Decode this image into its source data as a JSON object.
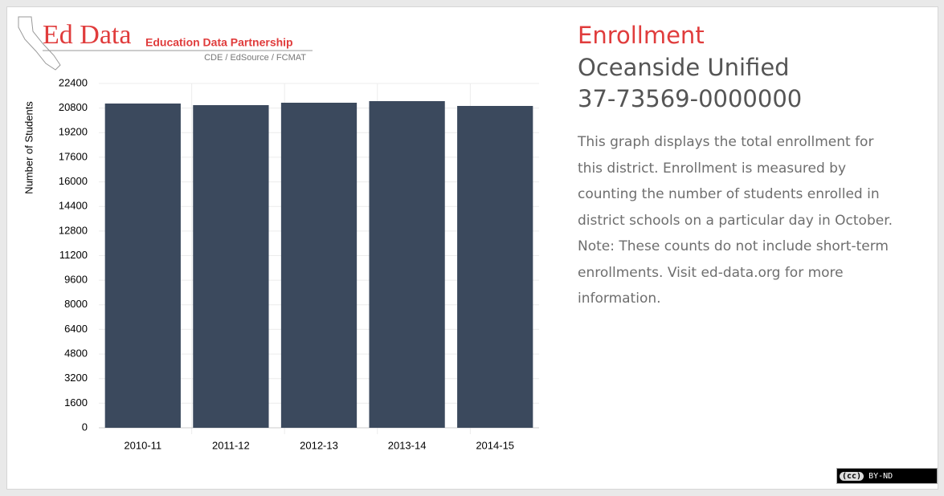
{
  "logo": {
    "name": "Ed Data",
    "tagline": "Education Data Partnership",
    "partners": "CDE / EdSource / FCMAT"
  },
  "info": {
    "heading": "Enrollment",
    "district": "Oceanside Unified",
    "code": "37-73569-0000000",
    "description": [
      "This graph displays the total enrollment for",
      "this district. Enrollment is measured by",
      "counting the number of students enrolled in",
      "district schools on a particular day in October.",
      "Note: These counts do not include short-term",
      "enrollments. Visit ed-data.org for more",
      "information."
    ]
  },
  "license": {
    "cc": "(cc)",
    "terms": "BY-ND"
  },
  "chart_data": {
    "type": "bar",
    "y_label": "Number of Students",
    "categories": [
      "2010-11",
      "2011-12",
      "2012-13",
      "2013-14",
      "2014-15"
    ],
    "values": [
      21095,
      20990,
      21147,
      21251,
      20938
    ],
    "color": "#3b495d",
    "ylim": [
      0,
      22400
    ],
    "yticks": [
      0,
      1600,
      3200,
      4800,
      6400,
      8000,
      9600,
      11200,
      12800,
      14400,
      16000,
      17600,
      19200,
      20800,
      22400
    ],
    "grid": true
  }
}
